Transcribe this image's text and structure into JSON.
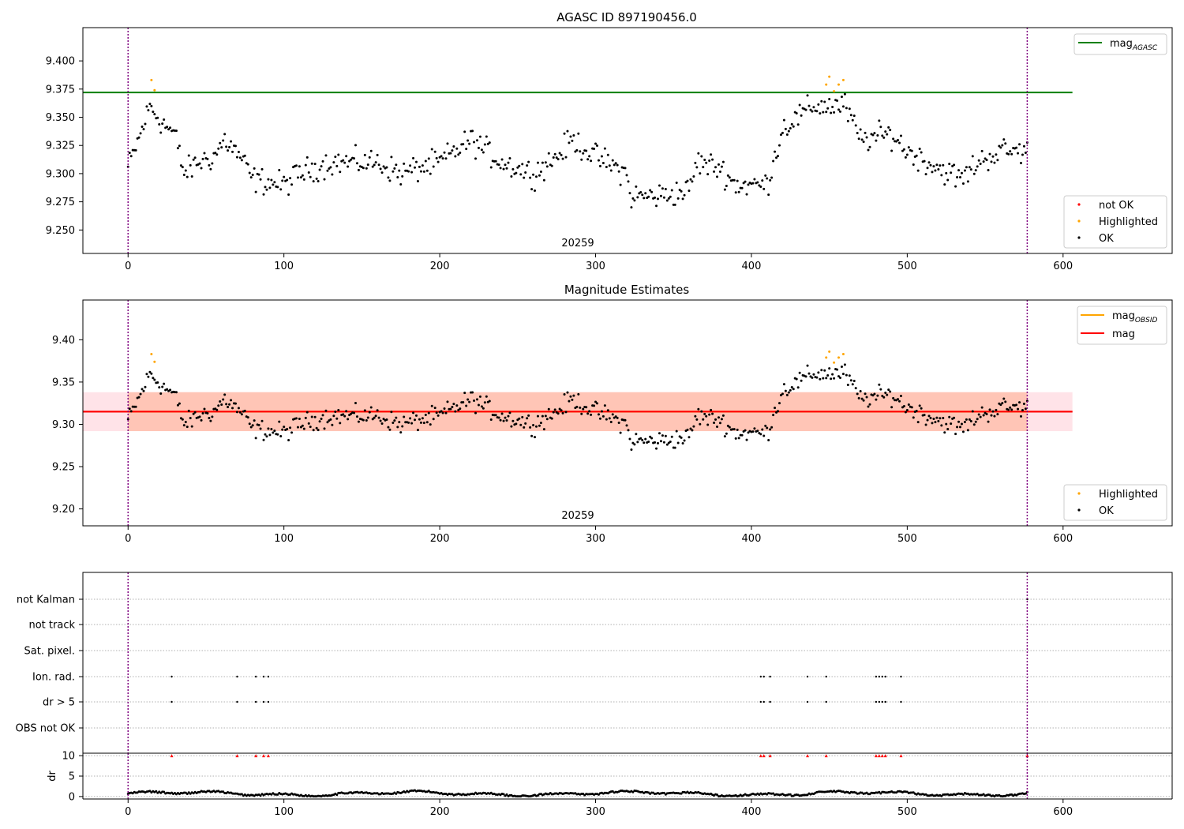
{
  "chart_data": [
    {
      "id": "top",
      "type": "scatter",
      "title": "AGASC ID 897190456.0",
      "xlabel": "",
      "ylabel": "",
      "xlim": [
        -29,
        670
      ],
      "ylim": [
        9.2292,
        9.4295
      ],
      "x_ticks": [
        "0",
        "100",
        "200",
        "300",
        "400",
        "500",
        "600"
      ],
      "y_ticks": [
        "9.250",
        "9.275",
        "9.300",
        "9.325",
        "9.350",
        "9.375",
        "9.400"
      ],
      "obsid_label": "20259",
      "obsid_label_x": 288,
      "vlines": [
        0,
        577
      ],
      "hlines": [
        {
          "name": "mag",
          "subscript": "AGASC",
          "y": 9.372,
          "x_start": -29,
          "x_end": 606,
          "color": "#008000"
        }
      ],
      "legend_lines": [
        {
          "name": "mag",
          "subscript": "AGASC",
          "color": "#008000"
        }
      ],
      "legend_markers": [
        {
          "name": "not OK",
          "color": "#ff0000"
        },
        {
          "name": "Highlighted",
          "color": "#ffa500"
        },
        {
          "name": "OK",
          "color": "#000000"
        }
      ],
      "highlighted_points": [
        [
          15,
          9.383
        ],
        [
          17,
          9.374
        ],
        [
          448,
          9.379
        ],
        [
          450,
          9.386
        ],
        [
          453,
          9.373
        ],
        [
          456,
          9.379
        ],
        [
          459,
          9.383
        ]
      ],
      "series_gen": "mag"
    },
    {
      "id": "middle",
      "type": "scatter",
      "title": "Magnitude Estimates",
      "xlabel": "",
      "ylabel": "",
      "xlim": [
        -29,
        670
      ],
      "ylim": [
        9.18,
        9.447
      ],
      "x_ticks": [
        "0",
        "100",
        "200",
        "300",
        "400",
        "500",
        "600"
      ],
      "y_ticks": [
        "9.20",
        "9.25",
        "9.30",
        "9.35",
        "9.40"
      ],
      "obsid_label": "20259",
      "obsid_label_x": 288,
      "vlines": [
        0,
        577
      ],
      "hlines": [
        {
          "name": "mag",
          "subscript": "",
          "y": 9.315,
          "x_start": -29,
          "x_end": 606,
          "color": "#ff0000"
        }
      ],
      "bands": [
        {
          "y0": 9.292,
          "y1": 9.338,
          "x_start": -29,
          "x_end": 606,
          "color": "#ffc0cb"
        },
        {
          "y0": 9.292,
          "y1": 9.338,
          "x_start": 0,
          "x_end": 577,
          "color": "#ffa07a"
        }
      ],
      "segments": [
        {
          "y": 9.315,
          "x_start": 0,
          "x_end": 577,
          "color": "#ffa500"
        }
      ],
      "legend_lines": [
        {
          "name": "mag",
          "subscript": "OBSID",
          "color": "#ffa500"
        },
        {
          "name": "mag",
          "subscript": "",
          "color": "#ff0000"
        }
      ],
      "legend_markers": [
        {
          "name": "Highlighted",
          "color": "#ffa500"
        },
        {
          "name": "OK",
          "color": "#000000"
        }
      ],
      "highlighted_points": [
        [
          15,
          9.383
        ],
        [
          17,
          9.374
        ],
        [
          448,
          9.379
        ],
        [
          450,
          9.386
        ],
        [
          453,
          9.373
        ],
        [
          456,
          9.379
        ],
        [
          459,
          9.383
        ]
      ],
      "series_gen": "mag"
    },
    {
      "id": "flags",
      "type": "scatter",
      "title": "",
      "xlim": [
        -29,
        670
      ],
      "categories": [
        "not Kalman",
        "not track",
        "Sat. pixel.",
        "Ion. rad.",
        "dr > 5",
        "OBS not OK"
      ],
      "flag_points": {
        "Ion. rad.": [
          28,
          70,
          82,
          87,
          90,
          406,
          408,
          412,
          436,
          448,
          480,
          482,
          484,
          486,
          496
        ],
        "dr > 5": [
          28,
          70,
          82,
          87,
          90,
          406,
          408,
          412,
          436,
          448,
          480,
          482,
          484,
          486,
          496
        ],
        "not Kalman": [
          577
        ]
      },
      "vlines": [
        0,
        577
      ]
    },
    {
      "id": "dr",
      "type": "scatter",
      "title": "",
      "ylabel": "dr",
      "xlim": [
        -29,
        670
      ],
      "ylim": [
        -0.6,
        10.6
      ],
      "x_ticks": [
        "0",
        "100",
        "200",
        "300",
        "400",
        "500",
        "600"
      ],
      "y_ticks": [
        "0",
        "5",
        "10"
      ],
      "clipped_points_y": 10,
      "clipped_points_x": [
        28,
        70,
        82,
        87,
        90,
        406,
        408,
        412,
        436,
        448,
        480,
        482,
        484,
        486,
        496,
        577
      ],
      "vlines": [
        0,
        577
      ],
      "series_gen": "dr"
    }
  ]
}
